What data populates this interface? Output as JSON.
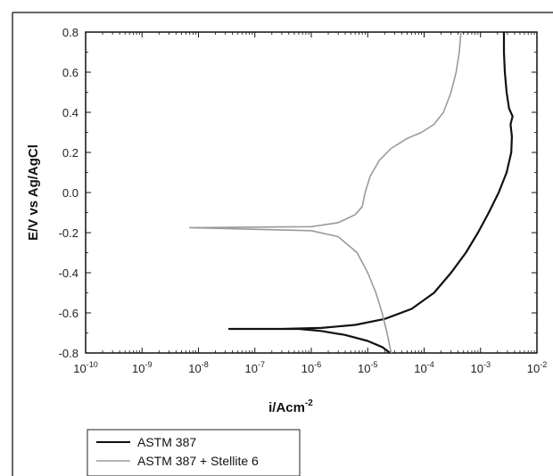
{
  "chart_data": {
    "type": "line",
    "title": "",
    "xlabel": "i/Acm",
    "xlabel_sup": "-2",
    "ylabel": "E/V vs Ag/AgCl",
    "x_scale": "log",
    "xlim": [
      1e-10,
      0.01
    ],
    "ylim": [
      -0.8,
      0.8
    ],
    "grid": false,
    "legend_position": "bottom-left, below plot",
    "x_ticks": [
      {
        "value": 1e-10,
        "base": "10",
        "exp": "-10"
      },
      {
        "value": 1e-09,
        "base": "10",
        "exp": "-9"
      },
      {
        "value": 1e-08,
        "base": "10",
        "exp": "-8"
      },
      {
        "value": 1e-07,
        "base": "10",
        "exp": "-7"
      },
      {
        "value": 1e-06,
        "base": "10",
        "exp": "-6"
      },
      {
        "value": 1e-05,
        "base": "10",
        "exp": "-5"
      },
      {
        "value": 0.0001,
        "base": "10",
        "exp": "-4"
      },
      {
        "value": 0.001,
        "base": "10",
        "exp": "-3"
      },
      {
        "value": 0.01,
        "base": "10",
        "exp": "-2"
      }
    ],
    "y_ticks": [
      {
        "value": 0.8,
        "label": "0.8"
      },
      {
        "value": 0.6,
        "label": "0.6"
      },
      {
        "value": 0.4,
        "label": "0.4"
      },
      {
        "value": 0.2,
        "label": "0.2"
      },
      {
        "value": 0.0,
        "label": "0.0"
      },
      {
        "value": -0.2,
        "label": "-0.2"
      },
      {
        "value": -0.4,
        "label": "-0.4"
      },
      {
        "value": -0.6,
        "label": "-0.6"
      },
      {
        "value": -0.8,
        "label": "-0.8"
      }
    ],
    "series": [
      {
        "name": "ASTM 387",
        "color": "#111111",
        "points": [
          [
            2.5e-05,
            -0.8
          ],
          [
            1.8e-05,
            -0.77
          ],
          [
            1e-05,
            -0.74
          ],
          [
            4e-06,
            -0.71
          ],
          [
            1.5e-06,
            -0.69
          ],
          [
            6e-07,
            -0.68
          ],
          [
            3.5e-08,
            -0.68
          ],
          [
            3e-07,
            -0.68
          ],
          [
            1.5e-06,
            -0.675
          ],
          [
            6e-06,
            -0.66
          ],
          [
            2e-05,
            -0.63
          ],
          [
            6e-05,
            -0.58
          ],
          [
            0.00015,
            -0.5
          ],
          [
            0.0003,
            -0.4
          ],
          [
            0.00055,
            -0.3
          ],
          [
            0.0009,
            -0.2
          ],
          [
            0.0014,
            -0.1
          ],
          [
            0.0021,
            0.0
          ],
          [
            0.0029,
            0.1
          ],
          [
            0.0035,
            0.2
          ],
          [
            0.0036,
            0.28
          ],
          [
            0.0034,
            0.34
          ],
          [
            0.0037,
            0.38
          ],
          [
            0.0032,
            0.42
          ],
          [
            0.0029,
            0.5
          ],
          [
            0.0027,
            0.6
          ],
          [
            0.0026,
            0.7
          ],
          [
            0.0026,
            0.8
          ]
        ]
      },
      {
        "name": "ASTM 387 + Stellite 6",
        "color": "#9a9a9a",
        "points": [
          [
            2.6e-05,
            -0.8
          ],
          [
            2.2e-05,
            -0.7
          ],
          [
            1.8e-05,
            -0.6
          ],
          [
            1.4e-05,
            -0.5
          ],
          [
            1e-05,
            -0.4
          ],
          [
            6.5e-06,
            -0.3
          ],
          [
            3e-06,
            -0.22
          ],
          [
            1e-06,
            -0.19
          ],
          [
            7e-09,
            -0.175
          ],
          [
            1e-06,
            -0.17
          ],
          [
            3e-06,
            -0.15
          ],
          [
            6e-06,
            -0.11
          ],
          [
            8e-06,
            -0.07
          ],
          [
            9e-06,
            0.0
          ],
          [
            1.1e-05,
            0.08
          ],
          [
            1.6e-05,
            0.16
          ],
          [
            2.6e-05,
            0.22
          ],
          [
            5e-05,
            0.27
          ],
          [
            9e-05,
            0.3
          ],
          [
            0.00015,
            0.34
          ],
          [
            0.00022,
            0.4
          ],
          [
            0.0003,
            0.5
          ],
          [
            0.00037,
            0.6
          ],
          [
            0.00042,
            0.7
          ],
          [
            0.00045,
            0.8
          ]
        ]
      }
    ]
  }
}
